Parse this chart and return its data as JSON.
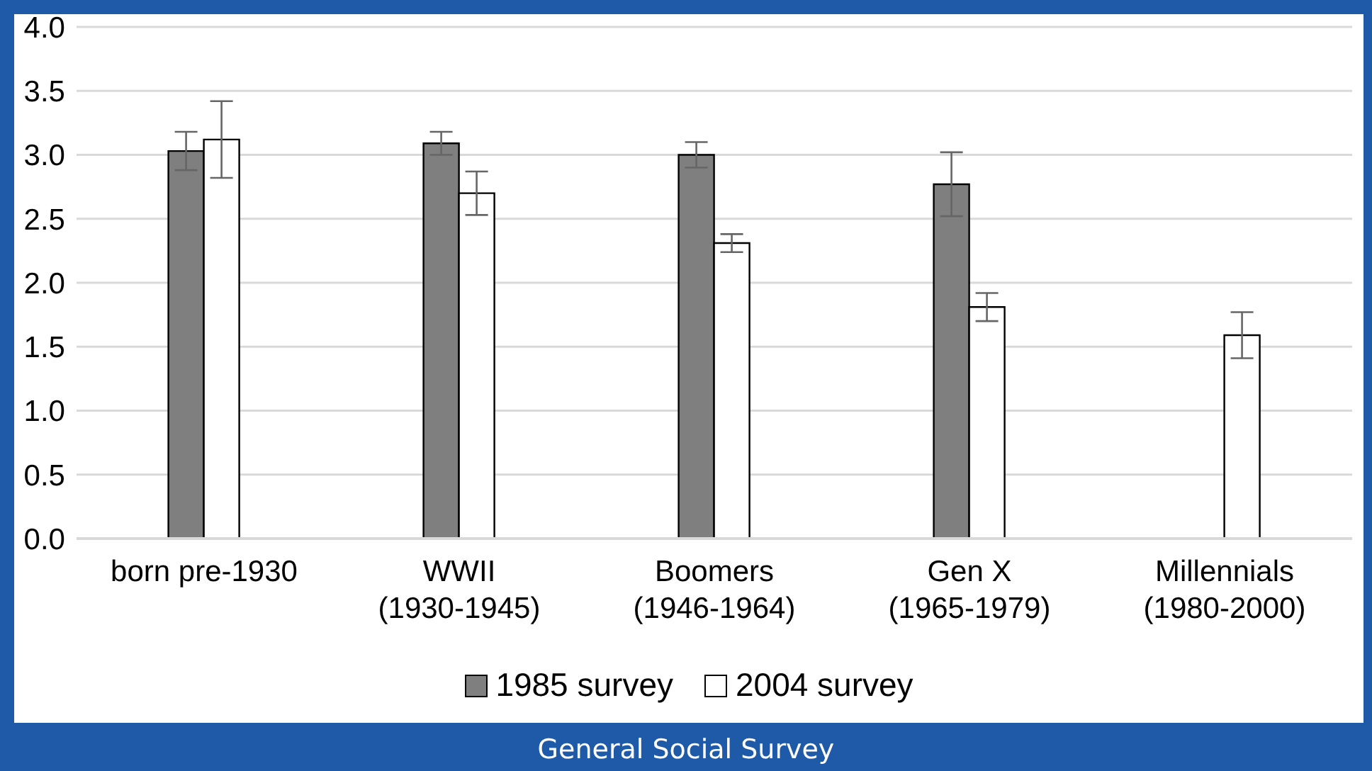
{
  "chart_data": {
    "type": "bar",
    "categories": [
      "born pre-1930",
      "WWII\n(1930-1945)",
      "Boomers\n(1946-1964)",
      "Gen X\n(1965-1979)",
      "Millennials\n(1980-2000)"
    ],
    "series": [
      {
        "name": "1985 survey",
        "color": "#7f7f7f",
        "values": [
          3.03,
          3.09,
          3.0,
          2.77,
          null
        ],
        "errors": [
          0.15,
          0.09,
          0.1,
          0.25,
          null
        ]
      },
      {
        "name": "2004 survey",
        "color": "#ffffff",
        "values": [
          3.12,
          2.7,
          2.31,
          1.81,
          1.59
        ],
        "errors": [
          0.3,
          0.17,
          0.07,
          0.11,
          0.18
        ]
      }
    ],
    "ylim": [
      0,
      4
    ],
    "yticks": [
      {
        "value": 0,
        "label": "0.0"
      },
      0.5,
      {
        "value": 1,
        "label": "1.0"
      },
      1.5,
      {
        "value": 2,
        "label": "2.0"
      },
      2.5,
      {
        "value": 3,
        "label": "3.0"
      },
      3.5,
      {
        "value": 4,
        "label": "4.0"
      }
    ],
    "grid": "y",
    "legend": "bottom",
    "annotations": [
      "General Social Survey"
    ]
  }
}
